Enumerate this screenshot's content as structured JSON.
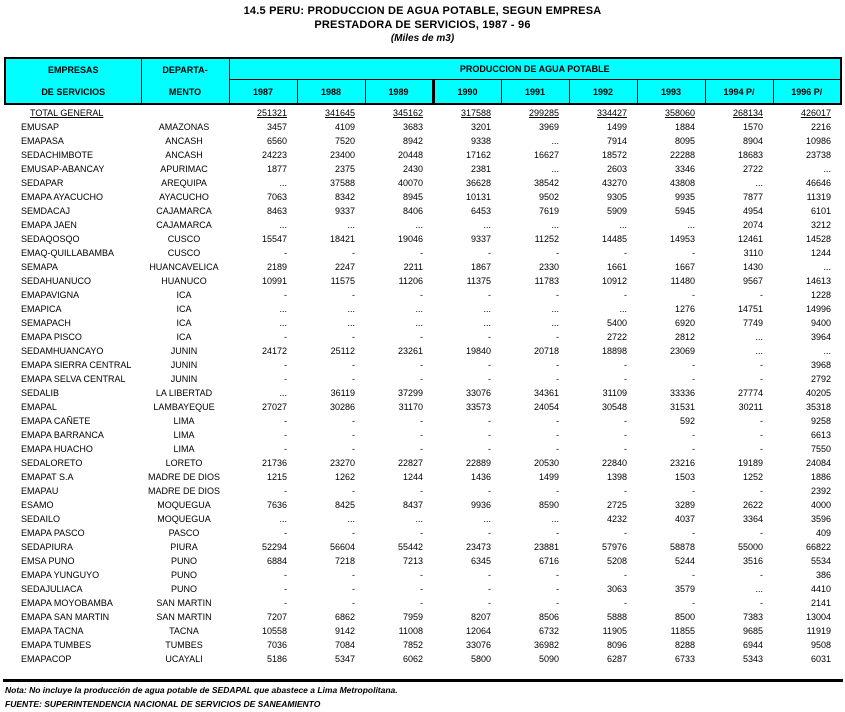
{
  "title": {
    "line1": "14.5 PERU: PRODUCCION DE AGUA POTABLE, SEGUN EMPRESA",
    "line2": "PRESTADORA DE SERVICIOS, 1987 - 96",
    "line3": "(Miles de m3)"
  },
  "colors": {
    "header_bg": "#00FFFF",
    "border": "#000000"
  },
  "table": {
    "header": {
      "col1_line1": "EMPRESAS",
      "col1_line2": "DE SERVICIOS",
      "col2_line1": "DEPARTA-",
      "col2_line2": "MENTO",
      "group_label": "PRODUCCION DE AGUA POTABLE",
      "years": [
        "1987",
        "1988",
        "1989",
        "1990",
        "1991",
        "1992",
        "1993",
        "1994 P/",
        "1996 P/"
      ]
    },
    "total_row": {
      "name": "TOTAL GENERAL",
      "dept": "",
      "values": [
        "251321",
        "341645",
        "345162",
        "317588",
        "299285",
        "334427",
        "358060",
        "268134",
        "426017"
      ]
    },
    "rows": [
      {
        "name": "EMUSAP",
        "dept": "AMAZONAS",
        "values": [
          "3457",
          "4109",
          "3683",
          "3201",
          "3969",
          "1499",
          "1884",
          "1570",
          "2216"
        ]
      },
      {
        "name": "EMAPASA",
        "dept": "ANCASH",
        "values": [
          "6560",
          "7520",
          "8942",
          "9338",
          "...",
          "7914",
          "8095",
          "8904",
          "10986"
        ]
      },
      {
        "name": "SEDACHIMBOTE",
        "dept": "ANCASH",
        "values": [
          "24223",
          "23400",
          "20448",
          "17162",
          "16627",
          "18572",
          "22288",
          "18683",
          "23738"
        ]
      },
      {
        "name": "EMUSAP-ABANCAY",
        "dept": "APURIMAC",
        "values": [
          "1877",
          "2375",
          "2430",
          "2381",
          "...",
          "2603",
          "3346",
          "2722",
          "..."
        ]
      },
      {
        "name": "SEDAPAR",
        "dept": "AREQUIPA",
        "values": [
          "...",
          "37588",
          "40070",
          "36628",
          "38542",
          "43270",
          "43808",
          "...",
          "46646"
        ]
      },
      {
        "name": "EMAPA AYACUCHO",
        "dept": "AYACUCHO",
        "values": [
          "7063",
          "8342",
          "8945",
          "10131",
          "9502",
          "9305",
          "9935",
          "7877",
          "11319"
        ]
      },
      {
        "name": "SEMDACAJ",
        "dept": "CAJAMARCA",
        "values": [
          "8463",
          "9337",
          "8406",
          "6453",
          "7619",
          "5909",
          "5945",
          "4954",
          "6101"
        ]
      },
      {
        "name": "EMAPA JAEN",
        "dept": "CAJAMARCA",
        "values": [
          "...",
          "...",
          "...",
          "...",
          "...",
          "...",
          "...",
          "2074",
          "3212"
        ]
      },
      {
        "name": "SEDAQOSQO",
        "dept": "CUSCO",
        "values": [
          "15547",
          "18421",
          "19046",
          "9337",
          "11252",
          "14485",
          "14953",
          "12461",
          "14528"
        ]
      },
      {
        "name": "EMAQ-QUILLABAMBA",
        "dept": "CUSCO",
        "values": [
          "-",
          "-",
          "-",
          "-",
          "-",
          "-",
          "-",
          "3110",
          "1244"
        ]
      },
      {
        "name": "SEMAPA",
        "dept": "HUANCAVELICA",
        "values": [
          "2189",
          "2247",
          "2211",
          "1867",
          "2330",
          "1661",
          "1667",
          "1430",
          "..."
        ]
      },
      {
        "name": "SEDAHUANUCO",
        "dept": "HUANUCO",
        "values": [
          "10991",
          "11575",
          "11206",
          "11375",
          "11783",
          "10912",
          "11480",
          "9567",
          "14613"
        ]
      },
      {
        "name": "EMAPAVIGNA",
        "dept": "ICA",
        "values": [
          "-",
          "-",
          "-",
          "-",
          "-",
          "-",
          "-",
          "-",
          "1228"
        ]
      },
      {
        "name": "EMAPICA",
        "dept": "ICA",
        "values": [
          "...",
          "...",
          "...",
          "...",
          "...",
          "...",
          "1276",
          "14751",
          "14996"
        ]
      },
      {
        "name": "SEMAPACH",
        "dept": "ICA",
        "values": [
          "...",
          "...",
          "...",
          "...",
          "...",
          "5400",
          "6920",
          "7749",
          "9400"
        ]
      },
      {
        "name": "EMAPA PISCO",
        "dept": "ICA",
        "values": [
          "-",
          "-",
          "-",
          "-",
          "-",
          "2722",
          "2812",
          "...",
          "3964"
        ]
      },
      {
        "name": "SEDAMHUANCAYO",
        "dept": "JUNIN",
        "values": [
          "24172",
          "25112",
          "23261",
          "19840",
          "20718",
          "18898",
          "23069",
          "...",
          "..."
        ]
      },
      {
        "name": "EMAPA SIERRA CENTRAL",
        "dept": "JUNIN",
        "values": [
          "-",
          "-",
          "-",
          "-",
          "-",
          "-",
          "-",
          "-",
          "3968"
        ]
      },
      {
        "name": "EMAPA SELVA CENTRAL",
        "dept": "JUNIN",
        "values": [
          "-",
          "-",
          "-",
          "-",
          "-",
          "-",
          "-",
          "-",
          "2792"
        ]
      },
      {
        "name": "SEDALIB",
        "dept": "LA LIBERTAD",
        "values": [
          "...",
          "36119",
          "37299",
          "33076",
          "34361",
          "31109",
          "33336",
          "27774",
          "40205"
        ]
      },
      {
        "name": "EMAPAL",
        "dept": "LAMBAYEQUE",
        "values": [
          "27027",
          "30286",
          "31170",
          "33573",
          "24054",
          "30548",
          "31531",
          "30211",
          "35318"
        ]
      },
      {
        "name": "EMAPA CAÑETE",
        "dept": "LIMA",
        "values": [
          "-",
          "-",
          "-",
          "-",
          "-",
          "-",
          "592",
          "-",
          "9258"
        ]
      },
      {
        "name": "EMAPA BARRANCA",
        "dept": "LIMA",
        "values": [
          "-",
          "-",
          "-",
          "-",
          "-",
          "-",
          "-",
          "-",
          "6613"
        ]
      },
      {
        "name": "EMAPA HUACHO",
        "dept": "LIMA",
        "values": [
          "-",
          "-",
          "-",
          "-",
          "-",
          "-",
          "-",
          "-",
          "7550"
        ]
      },
      {
        "name": "SEDALORETO",
        "dept": "LORETO",
        "values": [
          "21736",
          "23270",
          "22827",
          "22889",
          "20530",
          "22840",
          "23216",
          "19189",
          "24084"
        ]
      },
      {
        "name": "EMAPAT S.A",
        "dept": "MADRE DE DIOS",
        "values": [
          "1215",
          "1262",
          "1244",
          "1436",
          "1499",
          "1398",
          "1503",
          "1252",
          "1886"
        ]
      },
      {
        "name": "EMAPAU",
        "dept": "MADRE DE DIOS",
        "values": [
          "-",
          "-",
          "-",
          "-",
          "-",
          "-",
          "-",
          "-",
          "2392"
        ]
      },
      {
        "name": "ESAMO",
        "dept": "MOQUEGUA",
        "values": [
          "7636",
          "8425",
          "8437",
          "9936",
          "8590",
          "2725",
          "3289",
          "2622",
          "4000"
        ]
      },
      {
        "name": "SEDAILO",
        "dept": "MOQUEGUA",
        "values": [
          "...",
          "...",
          "...",
          "...",
          "...",
          "4232",
          "4037",
          "3364",
          "3596"
        ]
      },
      {
        "name": "EMAPA PASCO",
        "dept": "PASCO",
        "values": [
          "-",
          "-",
          "-",
          "-",
          "-",
          "-",
          "-",
          "-",
          "409"
        ]
      },
      {
        "name": "SEDAPIURA",
        "dept": "PIURA",
        "values": [
          "52294",
          "56604",
          "55442",
          "23473",
          "23881",
          "57976",
          "58878",
          "55000",
          "66822"
        ]
      },
      {
        "name": "EMSA PUNO",
        "dept": "PUNO",
        "values": [
          "6884",
          "7218",
          "7213",
          "6345",
          "6716",
          "5208",
          "5244",
          "3516",
          "5534"
        ]
      },
      {
        "name": "EMAPA YUNGUYO",
        "dept": "PUNO",
        "values": [
          "-",
          "-",
          "-",
          "-",
          "-",
          "-",
          "-",
          "-",
          "386"
        ]
      },
      {
        "name": "SEDAJULIACA",
        "dept": "PUNO",
        "values": [
          "-",
          "-",
          "-",
          "-",
          "-",
          "3063",
          "3579",
          "...",
          "4410"
        ]
      },
      {
        "name": "EMAPA MOYOBAMBA",
        "dept": "SAN MARTIN",
        "values": [
          "-",
          "-",
          "-",
          "-",
          "-",
          "-",
          "-",
          "-",
          "2141"
        ]
      },
      {
        "name": "EMAPA SAN MARTIN",
        "dept": "SAN MARTIN",
        "values": [
          "7207",
          "6862",
          "7959",
          "8207",
          "8506",
          "5888",
          "8500",
          "7383",
          "13004"
        ]
      },
      {
        "name": "EMAPA TACNA",
        "dept": "TACNA",
        "values": [
          "10558",
          "9142",
          "11008",
          "12064",
          "6732",
          "11905",
          "11855",
          "9685",
          "11919"
        ]
      },
      {
        "name": "EMAPA TUMBES",
        "dept": "TUMBES",
        "values": [
          "7036",
          "7084",
          "7852",
          "33076",
          "36982",
          "8096",
          "8288",
          "6944",
          "9508"
        ]
      },
      {
        "name": "EMAPACOP",
        "dept": "UCAYALI",
        "values": [
          "5186",
          "5347",
          "6062",
          "5800",
          "5090",
          "6287",
          "6733",
          "5343",
          "6031"
        ]
      }
    ]
  },
  "footer": {
    "nota": "Nota: No incluye la producción de agua potable de SEDAPAL que abastece a Lima Metropolitana.",
    "fuente": "FUENTE: SUPERINTENDENCIA NACIONAL DE SERVICIOS DE SANEAMIENTO"
  }
}
